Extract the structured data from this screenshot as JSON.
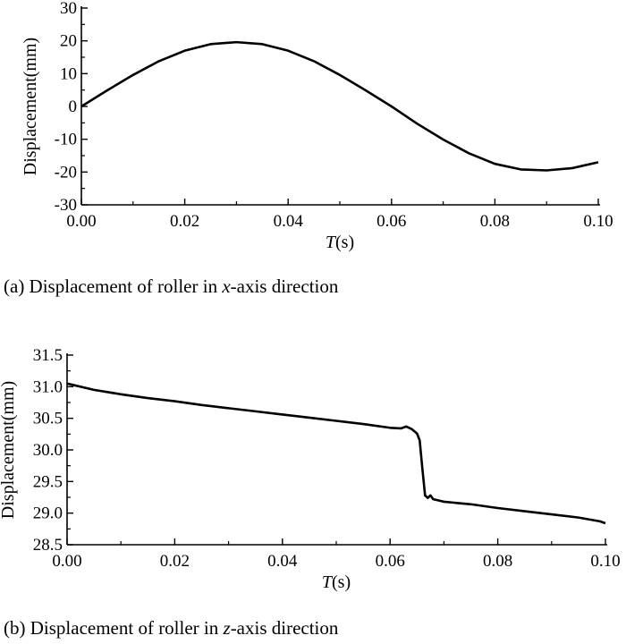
{
  "chart_data": [
    {
      "type": "line",
      "caption": {
        "prefix": "(a) Displacement of roller in ",
        "axis": "x",
        "suffix": "-axis direction"
      },
      "xlabel": {
        "italic": "T",
        "rest": "(s)"
      },
      "ylabel": "Displacement(mm)",
      "xlim": [
        0.0,
        0.1
      ],
      "ylim": [
        -30,
        30
      ],
      "xticks": [
        "0.00",
        "0.02",
        "0.04",
        "0.06",
        "0.08",
        "0.10"
      ],
      "yticks": [
        "-30",
        "-20",
        "-10",
        "0",
        "10",
        "20",
        "30"
      ],
      "series": [
        {
          "x": [
            0.0,
            0.005,
            0.01,
            0.015,
            0.02,
            0.025,
            0.03,
            0.035,
            0.04,
            0.045,
            0.05,
            0.055,
            0.06,
            0.065,
            0.07,
            0.075,
            0.08,
            0.085,
            0.09,
            0.095,
            0.1
          ],
          "y": [
            0.0,
            4.9,
            9.6,
            13.8,
            17.0,
            19.0,
            19.6,
            19.0,
            17.0,
            13.8,
            9.6,
            4.9,
            0.0,
            -5.3,
            -10.1,
            -14.3,
            -17.5,
            -19.2,
            -19.5,
            -18.8,
            -17.0
          ]
        }
      ]
    },
    {
      "type": "line",
      "caption": {
        "prefix": "(b) Displacement of roller in ",
        "axis": "z",
        "suffix": "-axis direction"
      },
      "xlabel": {
        "italic": "T",
        "rest": "(s)"
      },
      "ylabel": "Displacement(mm)",
      "xlim": [
        0.0,
        0.1
      ],
      "ylim": [
        28.5,
        31.5
      ],
      "xticks": [
        "0.00",
        "0.02",
        "0.04",
        "0.06",
        "0.08",
        "0.10"
      ],
      "yticks": [
        "28.5",
        "29.0",
        "29.5",
        "30.0",
        "30.5",
        "31.0",
        "31.5"
      ],
      "series": [
        {
          "x": [
            0.0,
            0.005,
            0.01,
            0.015,
            0.02,
            0.025,
            0.03,
            0.035,
            0.04,
            0.045,
            0.05,
            0.055,
            0.06,
            0.062,
            0.063,
            0.064,
            0.065,
            0.0655,
            0.066,
            0.0665,
            0.067,
            0.0675,
            0.068,
            0.069,
            0.07,
            0.075,
            0.08,
            0.085,
            0.09,
            0.095,
            0.099,
            0.1
          ],
          "y": [
            31.05,
            30.95,
            30.88,
            30.82,
            30.77,
            30.71,
            30.66,
            30.61,
            30.56,
            30.51,
            30.46,
            30.41,
            30.35,
            30.34,
            30.37,
            30.33,
            30.26,
            30.15,
            29.7,
            29.28,
            29.24,
            29.28,
            29.22,
            29.2,
            29.18,
            29.14,
            29.08,
            29.03,
            28.98,
            28.93,
            28.87,
            28.84
          ]
        }
      ]
    }
  ]
}
